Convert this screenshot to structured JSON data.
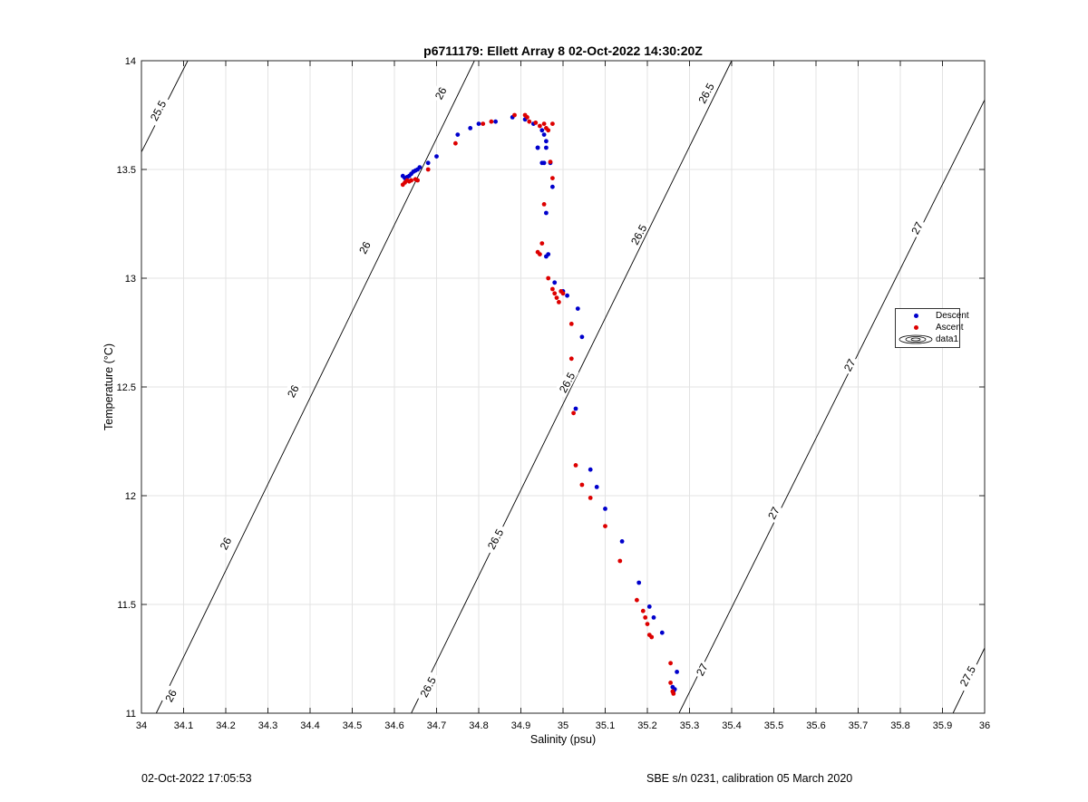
{
  "footer": {
    "left_text": "02-Oct-2022 17:05:53",
    "right_text": "SBE s/n 0231, calibration 05 March 2020"
  },
  "legend": {
    "items": [
      {
        "label": "Descent",
        "color": "#0000cc"
      },
      {
        "label": "Ascent",
        "color": "#dd0000"
      },
      {
        "label": "data1",
        "color": "#000000"
      }
    ]
  },
  "chart_data": {
    "type": "scatter",
    "title": "p6711179: Ellett Array 8 02-Oct-2022 14:30:20Z",
    "xlabel": "Salinity (psu)",
    "ylabel": "Temperature (°C)",
    "xlim": [
      34,
      36
    ],
    "ylim": [
      11,
      14
    ],
    "x_ticks": [
      34,
      34.1,
      34.2,
      34.3,
      34.4,
      34.5,
      34.6,
      34.7,
      34.8,
      34.9,
      35,
      35.1,
      35.2,
      35.3,
      35.4,
      35.5,
      35.6,
      35.7,
      35.8,
      35.9,
      36
    ],
    "x_tick_labels": [
      "34",
      "34.1",
      "34.2",
      "34.3",
      "34.4",
      "34.5",
      "34.6",
      "34.7",
      "34.8",
      "34.9",
      "35",
      "35.1",
      "35.2",
      "35.3",
      "35.4",
      "35.5",
      "35.6",
      "35.7",
      "35.8",
      "35.9",
      "36"
    ],
    "y_ticks": [
      11,
      11.5,
      12,
      12.5,
      13,
      13.5,
      14
    ],
    "y_tick_labels": [
      "11",
      "11.5",
      "12",
      "12.5",
      "13",
      "13.5",
      "14"
    ],
    "grid": true,
    "legend_position": "right",
    "contours": [
      {
        "label": "25.5",
        "points": [
          [
            34.0,
            13.58
          ],
          [
            34.11,
            14.0
          ]
        ]
      },
      {
        "label": "26",
        "points": [
          [
            34.035,
            11.0
          ],
          [
            34.79,
            14.0
          ]
        ]
      },
      {
        "label": "26.5",
        "points": [
          [
            34.64,
            11.0
          ],
          [
            35.4,
            14.0
          ]
        ]
      },
      {
        "label": "27",
        "points": [
          [
            35.275,
            11.0
          ],
          [
            36.0,
            13.82
          ]
        ]
      },
      {
        "label": "27.5",
        "points": [
          [
            35.925,
            11.0
          ],
          [
            36.0,
            11.3
          ]
        ]
      }
    ],
    "contour_labels": [
      {
        "text": "25.5",
        "x": 34.04,
        "y": 13.77
      },
      {
        "text": "26",
        "x": 34.07,
        "y": 11.08
      },
      {
        "text": "26",
        "x": 34.2,
        "y": 11.78
      },
      {
        "text": "26",
        "x": 34.36,
        "y": 12.48
      },
      {
        "text": "26",
        "x": 34.53,
        "y": 13.14
      },
      {
        "text": "26",
        "x": 34.71,
        "y": 13.85
      },
      {
        "text": "26.5",
        "x": 34.68,
        "y": 11.12
      },
      {
        "text": "26.5",
        "x": 34.84,
        "y": 11.8
      },
      {
        "text": "26.5",
        "x": 35.01,
        "y": 12.52
      },
      {
        "text": "26.5",
        "x": 35.18,
        "y": 13.2
      },
      {
        "text": "26.5",
        "x": 35.34,
        "y": 13.85
      },
      {
        "text": "27",
        "x": 35.33,
        "y": 11.2
      },
      {
        "text": "27",
        "x": 35.5,
        "y": 11.92
      },
      {
        "text": "27",
        "x": 35.68,
        "y": 12.6
      },
      {
        "text": "27",
        "x": 35.84,
        "y": 13.23
      },
      {
        "text": "27.5",
        "x": 35.96,
        "y": 11.17
      }
    ],
    "series": [
      {
        "name": "Descent",
        "color": "#0000cc",
        "x": [
          34.62,
          34.625,
          34.63,
          34.635,
          34.64,
          34.645,
          34.65,
          34.655,
          34.66,
          34.68,
          34.7,
          34.75,
          34.78,
          34.8,
          34.84,
          34.88,
          34.91,
          34.93,
          34.94,
          34.95,
          34.955,
          34.96,
          34.96,
          34.955,
          34.94,
          34.95,
          34.97,
          34.975,
          34.96,
          34.965,
          34.96,
          34.98,
          35.0,
          35.01,
          35.035,
          35.045,
          35.03,
          35.065,
          35.08,
          35.1,
          35.14,
          35.18,
          35.205,
          35.215,
          35.235,
          35.26,
          35.27,
          35.265,
          35.262
        ],
        "y": [
          13.47,
          13.46,
          13.465,
          13.47,
          13.48,
          13.49,
          13.495,
          13.5,
          13.51,
          13.53,
          13.56,
          13.66,
          13.69,
          13.71,
          13.72,
          13.74,
          13.73,
          13.71,
          13.6,
          13.68,
          13.66,
          13.63,
          13.6,
          13.53,
          13.6,
          13.53,
          13.53,
          13.42,
          13.3,
          13.11,
          13.1,
          12.98,
          12.94,
          12.92,
          12.86,
          12.73,
          12.4,
          12.12,
          12.04,
          11.94,
          11.79,
          11.6,
          11.49,
          11.44,
          11.37,
          11.12,
          11.19,
          11.11,
          11.1
        ]
      },
      {
        "name": "Ascent",
        "color": "#dd0000",
        "x": [
          34.62,
          34.625,
          34.63,
          34.635,
          34.64,
          34.65,
          34.655,
          34.68,
          34.745,
          34.81,
          34.83,
          34.885,
          34.91,
          34.915,
          34.92,
          34.935,
          34.945,
          34.955,
          34.96,
          34.965,
          34.975,
          34.97,
          34.975,
          34.955,
          34.95,
          34.94,
          34.945,
          34.965,
          34.975,
          34.98,
          34.985,
          34.99,
          34.995,
          35.0,
          35.02,
          35.02,
          35.025,
          35.03,
          35.045,
          35.065,
          35.1,
          35.135,
          35.175,
          35.19,
          35.195,
          35.2,
          35.205,
          35.21,
          35.255,
          35.255,
          35.26,
          35.262
        ],
        "y": [
          13.43,
          13.44,
          13.45,
          13.445,
          13.45,
          13.455,
          13.45,
          13.5,
          13.62,
          13.71,
          13.72,
          13.75,
          13.75,
          13.74,
          13.72,
          13.715,
          13.7,
          13.71,
          13.69,
          13.68,
          13.71,
          13.535,
          13.46,
          13.34,
          13.16,
          13.12,
          13.11,
          13.0,
          12.95,
          12.93,
          12.91,
          12.89,
          12.94,
          12.93,
          12.79,
          12.63,
          12.38,
          12.14,
          12.05,
          11.99,
          11.86,
          11.7,
          11.52,
          11.47,
          11.44,
          11.41,
          11.36,
          11.35,
          11.23,
          11.14,
          11.1,
          11.09
        ]
      }
    ]
  }
}
